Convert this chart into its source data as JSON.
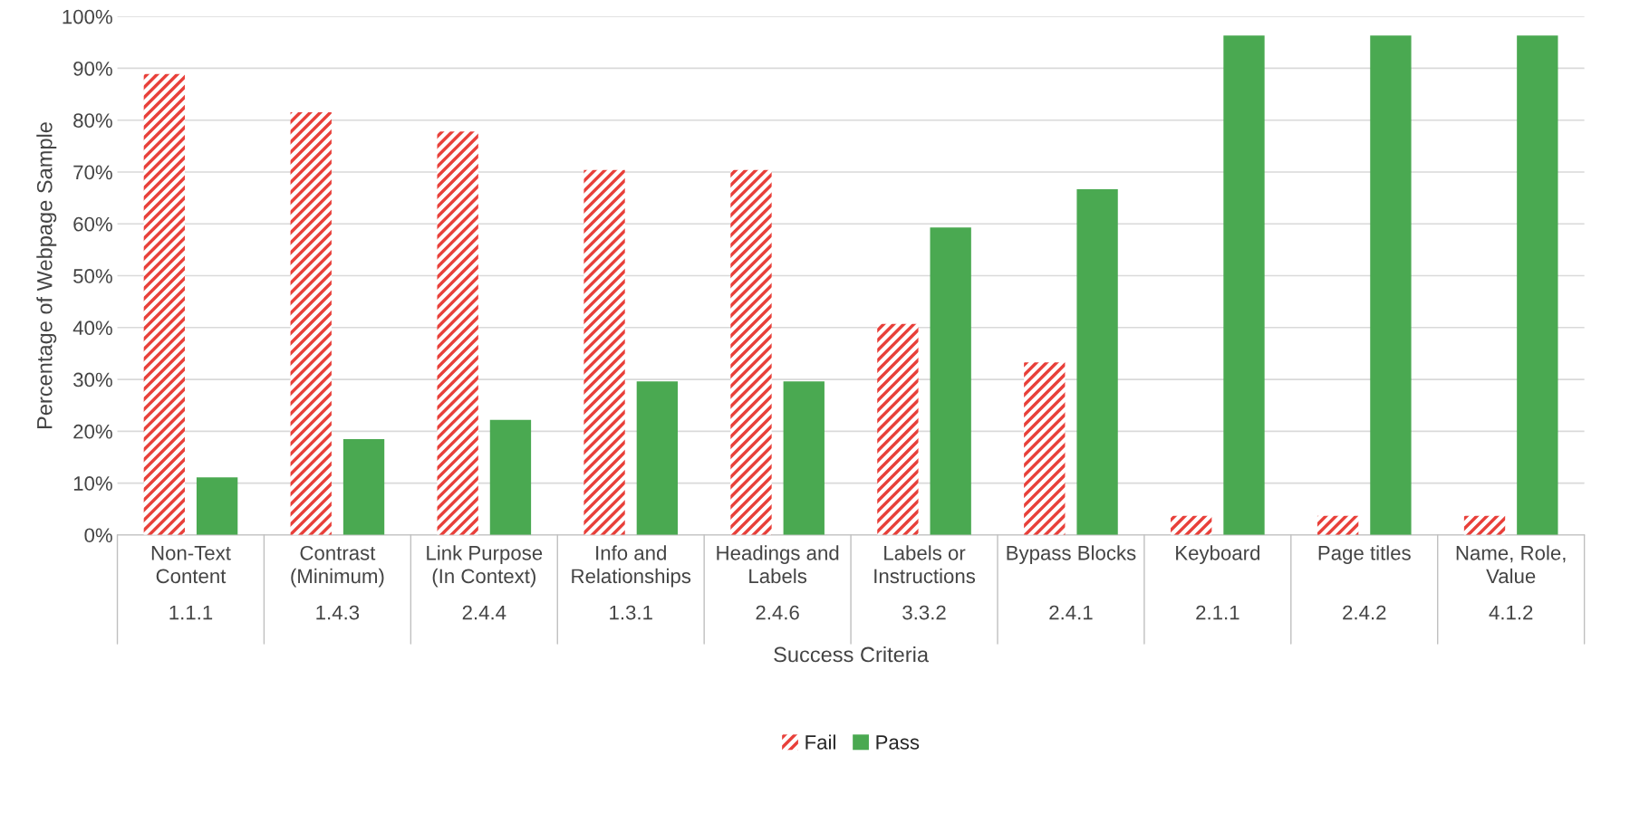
{
  "chart_data": {
    "type": "bar",
    "xlabel": "Success Criteria",
    "ylabel": "Percentage of Webpage Sample",
    "categories": [
      "Non-Text\nContent\n1.1.1",
      "Contrast\n(Minimum)\n1.4.3",
      "Link Purpose\n(In Context)\n2.4.4",
      "Info and\nRelationships\n1.3.1",
      "Headings and\nLabels\n2.4.6",
      "Labels or\nInstructions\n3.3.2",
      "Bypass Blocks\n2.4.1",
      "Keyboard\n2.1.1",
      "Page titles\n2.4.2",
      "Name, Role,\nValue\n4.1.2"
    ],
    "series": [
      {
        "name": "Fail",
        "color": "#e8403a",
        "values": [
          88.9,
          81.5,
          77.8,
          70.4,
          70.4,
          40.7,
          33.3,
          3.7,
          3.7,
          3.7
        ]
      },
      {
        "name": "Pass",
        "color": "#4aa951",
        "values": [
          11.1,
          18.5,
          22.2,
          29.6,
          29.6,
          59.3,
          66.7,
          96.3,
          96.3,
          96.3
        ]
      }
    ],
    "ylim": [
      0,
      100
    ],
    "yticks": [
      {
        "value": 0,
        "label": "0%"
      },
      {
        "value": 10,
        "label": "10%"
      },
      {
        "value": 20,
        "label": "20%"
      },
      {
        "value": 30,
        "label": "30%"
      },
      {
        "value": 40,
        "label": "40%"
      },
      {
        "value": 50,
        "label": "50%"
      },
      {
        "value": 60,
        "label": "60%"
      },
      {
        "value": 70,
        "label": "70%"
      },
      {
        "value": 80,
        "label": "80%"
      },
      {
        "value": 90,
        "label": "90%"
      },
      {
        "value": 100,
        "label": "100%"
      }
    ],
    "grid": "y",
    "legend": "bottom"
  }
}
